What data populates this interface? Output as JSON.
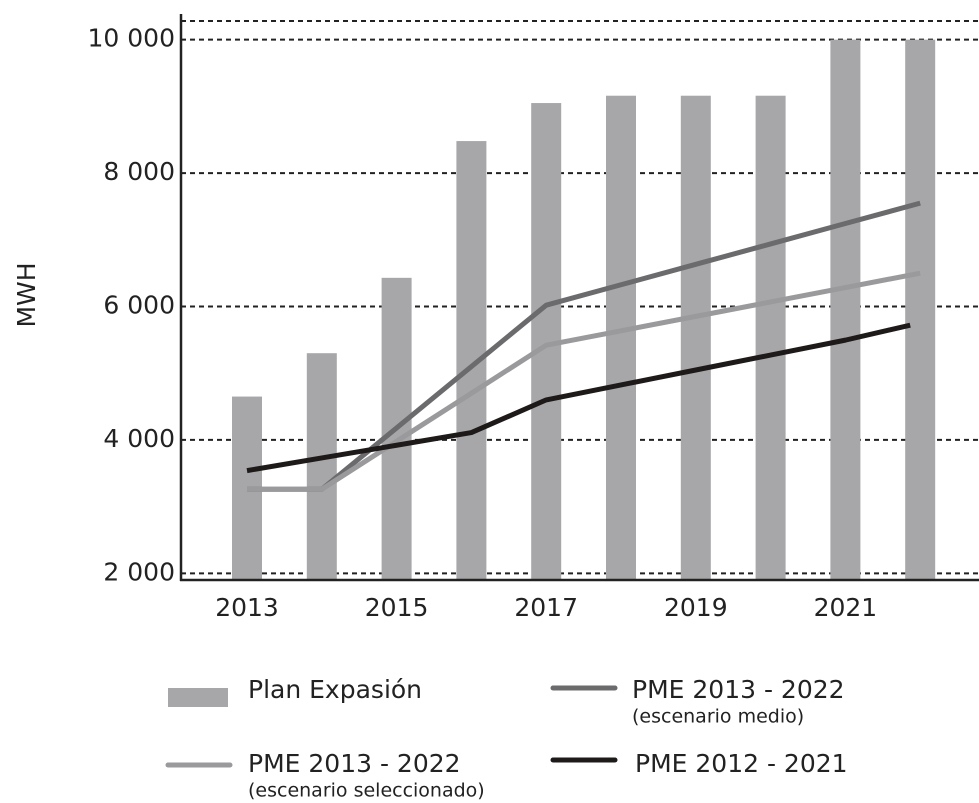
{
  "chart_data": {
    "type": "bar",
    "ylabel": "MWH",
    "categories": [
      "2013",
      null,
      "2015",
      null,
      "2017",
      null,
      "2019",
      null,
      "2021",
      null
    ],
    "bar_series": {
      "name": "Plan Expasión",
      "color": "#a7a7a9",
      "values": [
        4650,
        5300,
        6430,
        8480,
        9050,
        9160,
        9160,
        9160,
        10000,
        10000
      ]
    },
    "series": [
      {
        "name": "PME 2013 - 2022",
        "sublabel": "(escenario medio)",
        "color": "#6b6b6d",
        "values": [
          3260,
          3260,
          4180,
          5100,
          6020,
          6326,
          6632,
          6938,
          7244,
          7550
        ]
      },
      {
        "name": "PME 2013 - 2022",
        "sublabel": "(escenario seleccionado)",
        "color": "#9a9a9c",
        "values": [
          3260,
          3260,
          3980,
          4700,
          5420,
          5636,
          5852,
          6068,
          6284,
          6500
        ]
      },
      {
        "name": "PME 2012 - 2021",
        "color": "#1e1a1a",
        "values": [
          3540,
          3730,
          3920,
          4110,
          4600,
          4824,
          5048,
          5272,
          5496,
          5720
        ]
      }
    ],
    "ylim": [
      1900,
      10280
    ],
    "yticks": [
      {
        "value": 2000,
        "label": "2 000"
      },
      {
        "value": 4000,
        "label": "4 000"
      },
      {
        "value": 6000,
        "label": "6 000"
      },
      {
        "value": 8000,
        "label": "8 000"
      },
      {
        "value": 10000,
        "label": "10 000"
      }
    ],
    "grid": true
  }
}
